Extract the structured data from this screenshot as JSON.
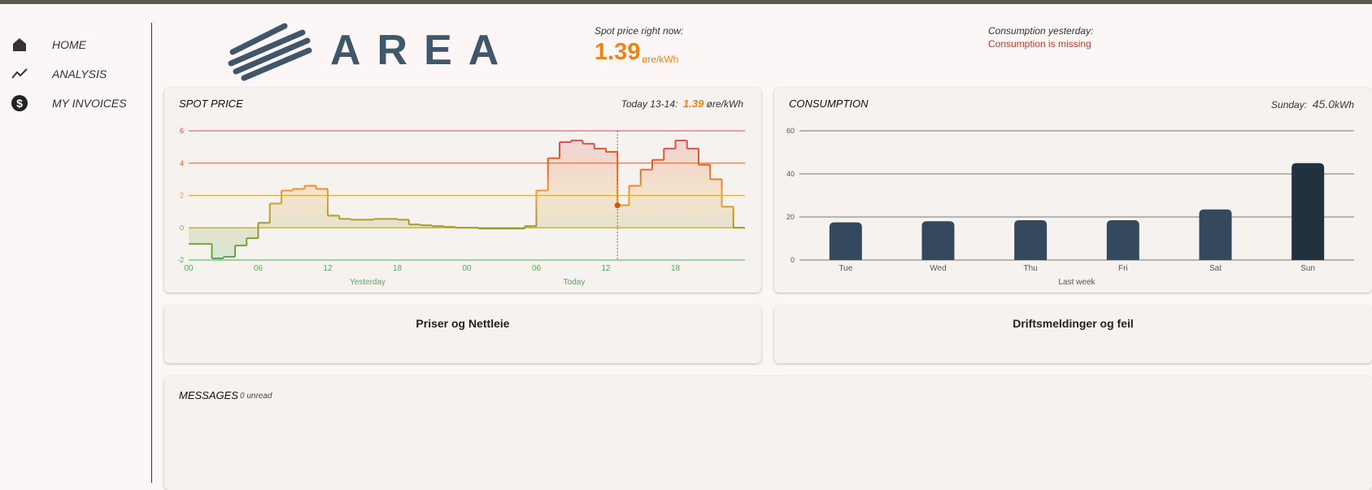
{
  "nav": {
    "items": [
      "HOME",
      "ANALYSIS",
      "MY INVOICES"
    ]
  },
  "logo": {
    "text": "AREA"
  },
  "spot_now": {
    "label": "Spot price right now:",
    "value": "1.39",
    "unit": "øre/kWh"
  },
  "consumption_yesterday": {
    "label": "Consumption yesterday:",
    "status": "Consumption is missing"
  },
  "chart_data": [
    {
      "type": "step",
      "title": "SPOT PRICE",
      "header": {
        "label": "Today 13-14:",
        "value": "1.39",
        "unit": "øre/kWh"
      },
      "values": [
        -1.0,
        -1.0,
        -1.9,
        -1.8,
        -1.1,
        -0.65,
        0.3,
        1.5,
        2.3,
        2.4,
        2.6,
        2.4,
        0.75,
        0.55,
        0.5,
        0.5,
        0.55,
        0.55,
        0.5,
        0.2,
        0.15,
        0.1,
        0.05,
        0.0,
        0.0,
        -0.05,
        -0.05,
        -0.05,
        -0.05,
        0.1,
        2.3,
        4.3,
        5.3,
        5.4,
        5.2,
        4.9,
        4.7,
        1.39,
        2.6,
        3.6,
        4.2,
        4.9,
        5.4,
        4.9,
        3.9,
        3.0,
        1.3,
        0.0
      ],
      "xlim": [
        0,
        48
      ],
      "xticks": [
        {
          "value": 0,
          "label": "00"
        },
        {
          "value": 6,
          "label": "06"
        },
        12,
        18,
        {
          "value": 24,
          "label": "00"
        },
        {
          "value": 30,
          "label": "06"
        },
        {
          "value": 36,
          "label": "12"
        },
        {
          "value": 42,
          "label": "18"
        }
      ],
      "day_labels": [
        "Yesterday",
        "Today"
      ],
      "ylim": [
        -2,
        6
      ],
      "yticks": [
        -2,
        0,
        2,
        4,
        6
      ],
      "level_colors": [
        "#4caf50",
        "#9a9a2a",
        "#f0a030",
        "#e0602a",
        "#d9456a"
      ],
      "grid": true
    },
    {
      "type": "bar",
      "title": "CONSUMPTION",
      "header": {
        "label": "Sunday:",
        "value": "45.0",
        "unit": "kWh"
      },
      "categories": [
        "Tue",
        "Wed",
        "Thu",
        "Fri",
        "Sat",
        "Sun"
      ],
      "values": [
        17.5,
        18,
        18.5,
        18.5,
        23.5,
        45
      ],
      "colors": [
        "#34495e",
        "#34495e",
        "#34495e",
        "#34495e",
        "#34495e",
        "#22313f"
      ],
      "x_label": "Last week",
      "ylim": [
        0,
        60
      ],
      "yticks": [
        0,
        20,
        40,
        60
      ],
      "grid": true
    }
  ],
  "cards": [
    "Priser og Nettleie",
    "Driftsmeldinger og feil"
  ],
  "messages": {
    "title": "MESSAGES",
    "unread": "0 unread"
  }
}
